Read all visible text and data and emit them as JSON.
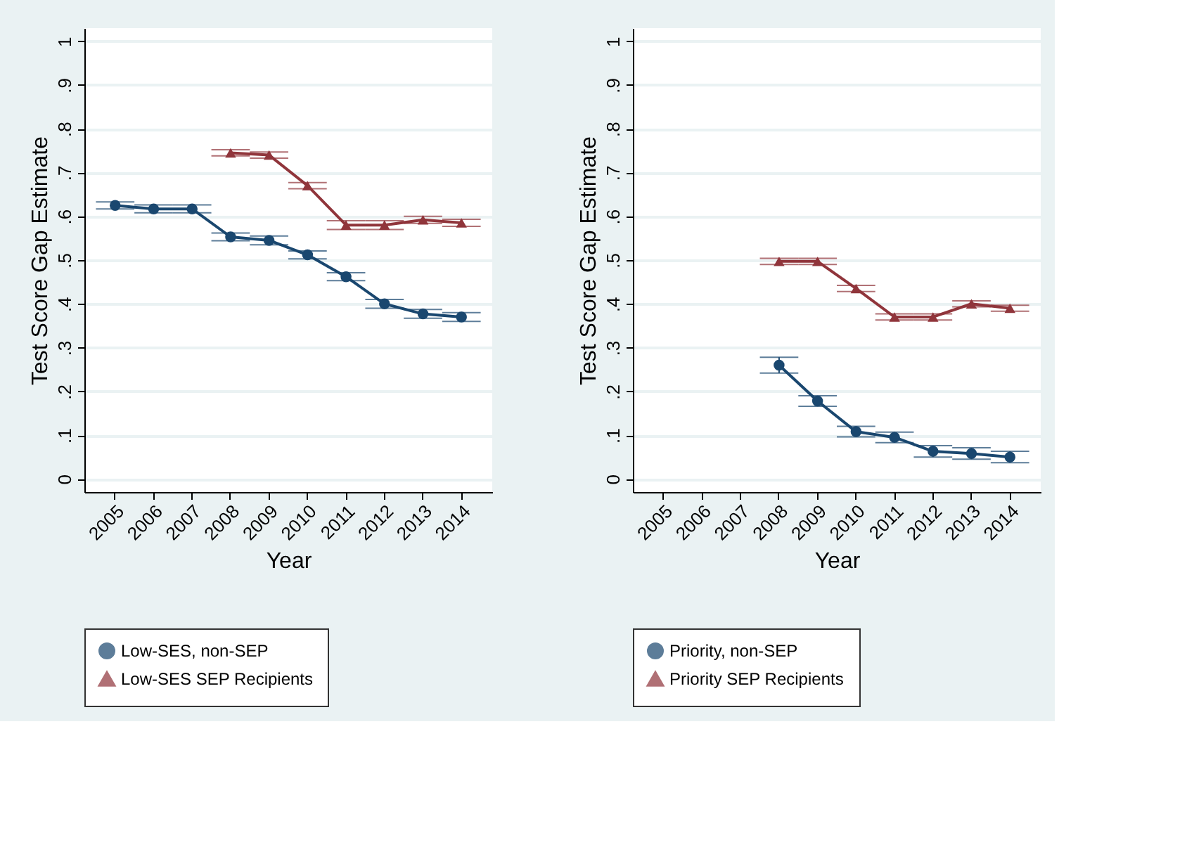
{
  "chart_data": [
    {
      "type": "line",
      "xlabel": "Year",
      "ylabel": "Test Score Gap Estimate",
      "categories": [
        "2005",
        "2006",
        "2007",
        "2008",
        "2009",
        "2010",
        "2011",
        "2012",
        "2013",
        "2014"
      ],
      "ylim": [
        -0.03,
        1.03
      ],
      "yticks": [
        {
          "value": 0,
          "label": "0"
        },
        {
          "value": 0.1,
          "label": ".1"
        },
        {
          "value": 0.2,
          "label": ".2"
        },
        {
          "value": 0.3,
          "label": ".3"
        },
        {
          "value": 0.4,
          "label": ".4"
        },
        {
          "value": 0.5,
          "label": ".5"
        },
        {
          "value": 0.6,
          "label": ".6"
        },
        {
          "value": 0.7,
          "label": ".7"
        },
        {
          "value": 0.8,
          "label": ".8"
        },
        {
          "value": 0.9,
          "label": ".9"
        },
        {
          "value": 1,
          "label": "1"
        }
      ],
      "grid": "y",
      "legend": "bottom",
      "series": [
        {
          "name": "Low-SES, non-SEP",
          "color": "#1a476f",
          "marker": "circle",
          "values": [
            0.625,
            0.617,
            0.617,
            0.553,
            0.545,
            0.512,
            0.462,
            0.4,
            0.377,
            0.37
          ],
          "errors": [
            0.008,
            0.009,
            0.009,
            0.009,
            0.01,
            0.009,
            0.009,
            0.01,
            0.01,
            0.01
          ]
        },
        {
          "name": "Low-SES SEP Recipients",
          "color": "#90353b",
          "marker": "triangle",
          "values": [
            null,
            null,
            null,
            0.745,
            0.74,
            0.67,
            0.58,
            0.58,
            0.592,
            0.585
          ],
          "errors": [
            null,
            null,
            null,
            0.007,
            0.007,
            0.007,
            0.01,
            0.01,
            0.008,
            0.008
          ]
        }
      ]
    },
    {
      "type": "line",
      "xlabel": "Year",
      "ylabel": "Test Score Gap Estimate",
      "categories": [
        "2005",
        "2006",
        "2007",
        "2008",
        "2009",
        "2010",
        "2011",
        "2012",
        "2013",
        "2014"
      ],
      "ylim": [
        -0.03,
        1.03
      ],
      "yticks": [
        {
          "value": 0,
          "label": "0"
        },
        {
          "value": 0.1,
          "label": ".1"
        },
        {
          "value": 0.2,
          "label": ".2"
        },
        {
          "value": 0.3,
          "label": ".3"
        },
        {
          "value": 0.4,
          "label": ".4"
        },
        {
          "value": 0.5,
          "label": ".5"
        },
        {
          "value": 0.6,
          "label": ".6"
        },
        {
          "value": 0.7,
          "label": ".7"
        },
        {
          "value": 0.8,
          "label": ".8"
        },
        {
          "value": 0.9,
          "label": ".9"
        },
        {
          "value": 1,
          "label": "1"
        }
      ],
      "grid": "y",
      "legend": "bottom",
      "series": [
        {
          "name": "Priority, non-SEP",
          "color": "#1a476f",
          "marker": "circle",
          "values": [
            null,
            null,
            null,
            0.26,
            0.178,
            0.108,
            0.095,
            0.063,
            0.058,
            0.05
          ],
          "errors": [
            null,
            null,
            null,
            0.018,
            0.012,
            0.012,
            0.012,
            0.013,
            0.013,
            0.013
          ]
        },
        {
          "name": "Priority SEP Recipients",
          "color": "#90353b",
          "marker": "triangle",
          "values": [
            null,
            null,
            null,
            0.497,
            0.497,
            0.435,
            0.37,
            0.37,
            0.4,
            0.39
          ],
          "errors": [
            null,
            null,
            null,
            0.007,
            0.007,
            0.007,
            0.007,
            0.007,
            0.007,
            0.007
          ]
        }
      ]
    }
  ]
}
